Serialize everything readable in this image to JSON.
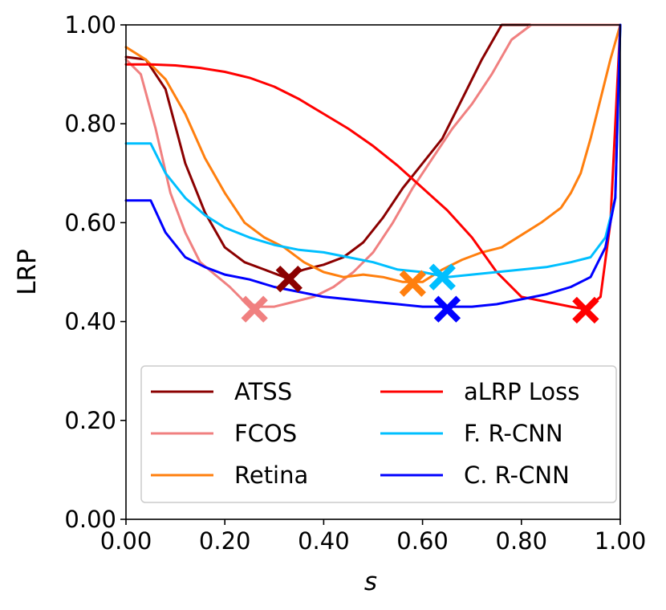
{
  "chart_data": {
    "type": "line",
    "title": "",
    "xlabel": "s",
    "ylabel": "LRP",
    "xlim": [
      0.0,
      1.0
    ],
    "ylim": [
      0.0,
      1.0
    ],
    "grid": false,
    "legend_position": "lower-center",
    "xticks": [
      0.0,
      0.2,
      0.4,
      0.6,
      0.8,
      1.0
    ],
    "yticks": [
      0.0,
      0.2,
      0.4,
      0.6,
      0.8,
      1.0
    ],
    "xtick_labels": [
      "0.00",
      "0.20",
      "0.40",
      "0.60",
      "0.80",
      "1.00"
    ],
    "ytick_labels": [
      "0.00",
      "0.20",
      "0.40",
      "0.60",
      "0.80",
      "1.00"
    ],
    "series": [
      {
        "name": "ATSS",
        "color": "#8b0000",
        "marker_min": {
          "x": 0.33,
          "y": 0.486
        },
        "x": [
          0.0,
          0.04,
          0.08,
          0.12,
          0.16,
          0.2,
          0.24,
          0.28,
          0.32,
          0.36,
          0.4,
          0.44,
          0.48,
          0.52,
          0.56,
          0.6,
          0.64,
          0.68,
          0.72,
          0.76,
          0.8,
          0.84,
          0.88,
          0.92,
          0.96,
          1.0
        ],
        "y": [
          0.935,
          0.93,
          0.87,
          0.72,
          0.62,
          0.55,
          0.52,
          0.505,
          0.49,
          0.505,
          0.515,
          0.53,
          0.56,
          0.61,
          0.67,
          0.72,
          0.77,
          0.85,
          0.93,
          1.0,
          1.0,
          1.0,
          1.0,
          1.0,
          1.0,
          1.0
        ]
      },
      {
        "name": "FCOS",
        "color": "#f08080",
        "marker_min": {
          "x": 0.26,
          "y": 0.425
        },
        "x": [
          0.0,
          0.03,
          0.06,
          0.09,
          0.12,
          0.15,
          0.18,
          0.21,
          0.24,
          0.27,
          0.3,
          0.34,
          0.38,
          0.42,
          0.46,
          0.5,
          0.54,
          0.58,
          0.62,
          0.66,
          0.7,
          0.74,
          0.78,
          0.82,
          0.86,
          0.9,
          0.94,
          0.98,
          1.0
        ],
        "y": [
          0.93,
          0.9,
          0.79,
          0.66,
          0.58,
          0.52,
          0.495,
          0.47,
          0.44,
          0.43,
          0.43,
          0.44,
          0.45,
          0.47,
          0.5,
          0.54,
          0.6,
          0.67,
          0.73,
          0.79,
          0.84,
          0.9,
          0.97,
          1.0,
          1.0,
          1.0,
          1.0,
          1.0,
          1.0
        ]
      },
      {
        "name": "Retina",
        "color": "#ff7f0e",
        "marker_min": {
          "x": 0.58,
          "y": 0.477
        },
        "x": [
          0.0,
          0.04,
          0.08,
          0.12,
          0.16,
          0.2,
          0.24,
          0.28,
          0.32,
          0.36,
          0.4,
          0.44,
          0.48,
          0.52,
          0.56,
          0.6,
          0.64,
          0.68,
          0.72,
          0.76,
          0.8,
          0.84,
          0.88,
          0.9,
          0.92,
          0.94,
          0.96,
          0.98,
          1.0
        ],
        "y": [
          0.955,
          0.93,
          0.89,
          0.82,
          0.73,
          0.66,
          0.6,
          0.57,
          0.55,
          0.52,
          0.5,
          0.49,
          0.495,
          0.49,
          0.48,
          0.48,
          0.505,
          0.525,
          0.54,
          0.55,
          0.575,
          0.6,
          0.63,
          0.66,
          0.7,
          0.77,
          0.85,
          0.93,
          1.0
        ]
      },
      {
        "name": "aLRP Loss",
        "color": "#ff0000",
        "marker_min": {
          "x": 0.93,
          "y": 0.423
        },
        "x": [
          0.0,
          0.05,
          0.1,
          0.15,
          0.2,
          0.25,
          0.3,
          0.35,
          0.4,
          0.45,
          0.5,
          0.55,
          0.6,
          0.65,
          0.7,
          0.75,
          0.8,
          0.85,
          0.9,
          0.93,
          0.96,
          0.98,
          1.0
        ],
        "y": [
          0.92,
          0.92,
          0.918,
          0.913,
          0.905,
          0.893,
          0.875,
          0.85,
          0.82,
          0.79,
          0.755,
          0.715,
          0.67,
          0.625,
          0.57,
          0.5,
          0.45,
          0.44,
          0.43,
          0.425,
          0.45,
          0.6,
          1.0
        ]
      },
      {
        "name": "F. R-CNN",
        "color": "#00bfff",
        "marker_min": {
          "x": 0.64,
          "y": 0.49
        },
        "x": [
          0.0,
          0.03,
          0.05,
          0.08,
          0.12,
          0.16,
          0.2,
          0.25,
          0.3,
          0.35,
          0.4,
          0.45,
          0.5,
          0.55,
          0.6,
          0.65,
          0.7,
          0.75,
          0.8,
          0.85,
          0.9,
          0.94,
          0.97,
          0.99,
          1.0
        ],
        "y": [
          0.76,
          0.76,
          0.76,
          0.7,
          0.65,
          0.615,
          0.59,
          0.57,
          0.555,
          0.545,
          0.54,
          0.53,
          0.52,
          0.505,
          0.5,
          0.49,
          0.495,
          0.5,
          0.505,
          0.51,
          0.52,
          0.53,
          0.57,
          0.65,
          1.0
        ]
      },
      {
        "name": "C. R-CNN",
        "color": "#0000ff",
        "marker_min": {
          "x": 0.65,
          "y": 0.425
        },
        "x": [
          0.0,
          0.03,
          0.05,
          0.08,
          0.12,
          0.16,
          0.2,
          0.25,
          0.3,
          0.35,
          0.4,
          0.45,
          0.5,
          0.55,
          0.6,
          0.65,
          0.7,
          0.75,
          0.8,
          0.85,
          0.9,
          0.94,
          0.97,
          0.99,
          1.0
        ],
        "y": [
          0.645,
          0.645,
          0.645,
          0.58,
          0.53,
          0.51,
          0.495,
          0.485,
          0.47,
          0.46,
          0.45,
          0.445,
          0.44,
          0.435,
          0.43,
          0.43,
          0.43,
          0.435,
          0.445,
          0.455,
          0.47,
          0.49,
          0.55,
          0.65,
          1.0
        ]
      }
    ]
  }
}
